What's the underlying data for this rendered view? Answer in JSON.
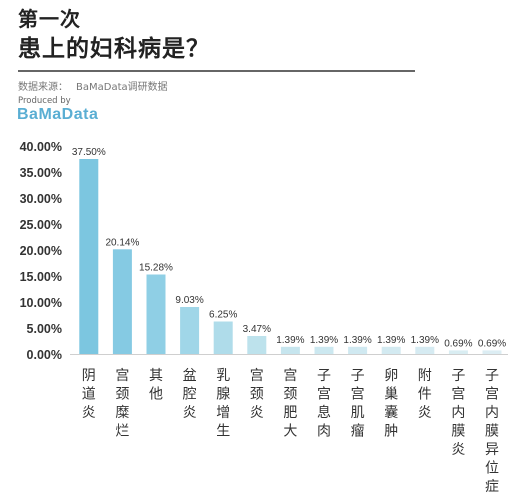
{
  "header": {
    "title_line1": "第一次",
    "title_line2": "患上的妇科病是？",
    "source_label": "数据来源：",
    "source_value": "BaMaData调研数据",
    "produced_by": "Produced by",
    "brand": "BaMaData"
  },
  "colors": {
    "brand": "#5aaed3",
    "bar_gradient": [
      "#7cc6e0",
      "#85cae3",
      "#8fcfe5",
      "#a0d6e8",
      "#afdcea",
      "#bde2ec",
      "#c6e5ee",
      "#cce8f0",
      "#d0e9f1",
      "#d3eaf1",
      "#d6ebf2",
      "#d9edf2",
      "#dcedf3"
    ]
  },
  "chart_data": {
    "type": "bar",
    "title": "患上的妇科病是？",
    "xlabel": "",
    "ylabel": "",
    "ylim": [
      0,
      40
    ],
    "y_ticks": [
      "0.00%",
      "5.00%",
      "10.00%",
      "15.00%",
      "20.00%",
      "25.00%",
      "30.00%",
      "35.00%",
      "40.00%"
    ],
    "categories": [
      "阴道炎",
      "宫颈糜烂",
      "其他",
      "盆腔炎",
      "乳腺增生",
      "宫颈炎",
      "宫颈肥大",
      "子宫息肉",
      "子宫肌瘤",
      "卵巢囊肿",
      "附件炎",
      "子宫内膜炎",
      "子宫内膜异位症"
    ],
    "values": [
      37.5,
      20.14,
      15.28,
      9.03,
      6.25,
      3.47,
      1.39,
      1.39,
      1.39,
      1.39,
      1.39,
      0.69,
      0.69
    ],
    "data_labels": [
      "37.50%",
      "20.14%",
      "15.28%",
      "9.03%",
      "6.25%",
      "3.47%",
      "1.39%",
      "1.39%",
      "1.39%",
      "1.39%",
      "1.39%",
      "0.69%",
      "0.69%"
    ],
    "grid": false,
    "legend": "none"
  }
}
